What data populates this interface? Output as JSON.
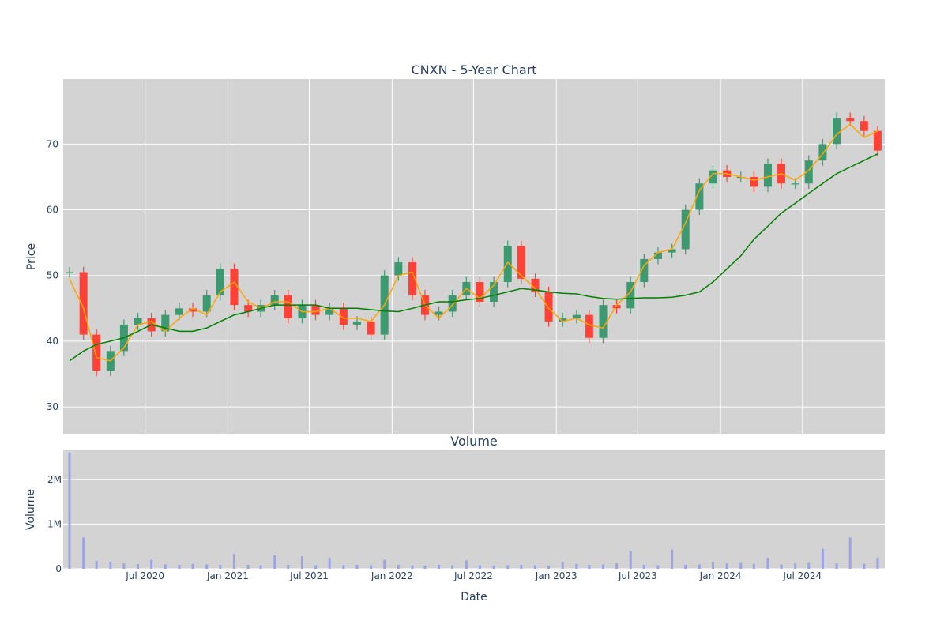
{
  "chart_data": [
    {
      "type": "candlestick",
      "title": "CNXN - 5-Year Chart",
      "ylabel": "Price",
      "ylim": [
        25.8,
        79.9
      ],
      "xlim": [
        "2020-01-01",
        "2024-12-31"
      ],
      "grid": true,
      "y_ticks": [
        30,
        40,
        50,
        60,
        70
      ],
      "colors": {
        "increasing": "#3d9970",
        "decreasing": "#ff4136",
        "ma_short": "#ffa500",
        "ma_long": "#008000",
        "plot_bg": "#d3d3d3",
        "grid": "#ffffff",
        "volume": "#9da3e6"
      },
      "series": [
        {
          "name": "",
          "style": "candlestick",
          "x": [
            "2020-01-01",
            "2020-02-01",
            "2020-03-01",
            "2020-04-01",
            "2020-05-01",
            "2020-06-01",
            "2020-07-01",
            "2020-08-01",
            "2020-09-01",
            "2020-10-01",
            "2020-11-01",
            "2020-12-01",
            "2021-01-01",
            "2021-02-01",
            "2021-03-01",
            "2021-04-01",
            "2021-05-01",
            "2021-06-01",
            "2021-07-01",
            "2021-08-01",
            "2021-09-01",
            "2021-10-01",
            "2021-11-01",
            "2021-12-01",
            "2022-01-01",
            "2022-02-01",
            "2022-03-01",
            "2022-04-01",
            "2022-05-01",
            "2022-06-01",
            "2022-07-01",
            "2022-08-01",
            "2022-09-01",
            "2022-10-01",
            "2022-11-01",
            "2022-12-01",
            "2023-01-01",
            "2023-02-01",
            "2023-03-01",
            "2023-04-01",
            "2023-05-01",
            "2023-06-01",
            "2023-07-01",
            "2023-08-01",
            "2023-09-01",
            "2023-10-01",
            "2023-11-01",
            "2023-12-01",
            "2024-01-01",
            "2024-02-01",
            "2024-03-01",
            "2024-04-01",
            "2024-05-01",
            "2024-06-01",
            "2024-07-01",
            "2024-08-01",
            "2024-09-01",
            "2024-10-01",
            "2024-11-01",
            "2024-12-01"
          ],
          "close": [
            50.5,
            41.0,
            35.5,
            38.5,
            42.5,
            43.5,
            41.5,
            44.0,
            45.0,
            44.5,
            47.0,
            51.0,
            45.5,
            44.5,
            45.5,
            47.0,
            43.5,
            45.5,
            44.0,
            45.0,
            42.5,
            43.0,
            41.0,
            50.0,
            52.0,
            47.0,
            44.0,
            44.5,
            47.0,
            49.0,
            46.0,
            49.0,
            54.5,
            49.5,
            47.5,
            43.0,
            43.5,
            44.0,
            40.5,
            45.5,
            45.0,
            49.0,
            52.5,
            53.5,
            54.0,
            60.0,
            64.0,
            66.0,
            65.0,
            65.0,
            63.5,
            67.0,
            64.0,
            64.0,
            67.5,
            70.0,
            74.0,
            73.5,
            72.0,
            69.0
          ]
        },
        {
          "name": "",
          "style": "line",
          "x": [
            "2020-01-01",
            "2020-02-01",
            "2020-03-01",
            "2020-04-01",
            "2020-05-01",
            "2020-06-01",
            "2020-07-01",
            "2020-08-01",
            "2020-09-01",
            "2020-10-01",
            "2020-11-01",
            "2020-12-01",
            "2021-01-01",
            "2021-02-01",
            "2021-03-01",
            "2021-04-01",
            "2021-05-01",
            "2021-06-01",
            "2021-07-01",
            "2021-08-01",
            "2021-09-01",
            "2021-10-01",
            "2021-11-01",
            "2021-12-01",
            "2022-01-01",
            "2022-02-01",
            "2022-03-01",
            "2022-04-01",
            "2022-05-01",
            "2022-06-01",
            "2022-07-01",
            "2022-08-01",
            "2022-09-01",
            "2022-10-01",
            "2022-11-01",
            "2022-12-01",
            "2023-01-01",
            "2023-02-01",
            "2023-03-01",
            "2023-04-01",
            "2023-05-01",
            "2023-06-01",
            "2023-07-01",
            "2023-08-01",
            "2023-09-01",
            "2023-10-01",
            "2023-11-01",
            "2023-12-01",
            "2024-01-01",
            "2024-02-01",
            "2024-03-01",
            "2024-04-01",
            "2024-05-01",
            "2024-06-01",
            "2024-07-01",
            "2024-08-01",
            "2024-09-01",
            "2024-10-01",
            "2024-11-01",
            "2024-12-01"
          ],
          "y": [
            49.5,
            45.0,
            37.5,
            37.0,
            39.0,
            42.5,
            43.0,
            41.5,
            43.5,
            45.0,
            44.0,
            47.5,
            49.0,
            46.0,
            45.0,
            46.0,
            46.0,
            44.5,
            44.5,
            45.0,
            43.5,
            43.5,
            43.0,
            45.5,
            50.0,
            50.5,
            45.5,
            43.5,
            45.5,
            48.0,
            46.5,
            48.5,
            52.0,
            50.0,
            48.0,
            45.0,
            43.0,
            43.5,
            42.5,
            42.0,
            45.5,
            47.5,
            51.5,
            53.5,
            54.0,
            58.0,
            63.0,
            65.5,
            65.5,
            65.0,
            64.5,
            65.0,
            65.5,
            64.5,
            66.0,
            68.5,
            71.5,
            73.0,
            71.0,
            72.0
          ]
        },
        {
          "name": "",
          "style": "line",
          "x": [
            "2020-01-01",
            "2020-02-01",
            "2020-03-01",
            "2020-04-01",
            "2020-05-01",
            "2020-06-01",
            "2020-07-01",
            "2020-08-01",
            "2020-09-01",
            "2020-10-01",
            "2020-11-01",
            "2020-12-01",
            "2021-01-01",
            "2021-02-01",
            "2021-03-01",
            "2021-04-01",
            "2021-05-01",
            "2021-06-01",
            "2021-07-01",
            "2021-08-01",
            "2021-09-01",
            "2021-10-01",
            "2021-11-01",
            "2021-12-01",
            "2022-01-01",
            "2022-02-01",
            "2022-03-01",
            "2022-04-01",
            "2022-05-01",
            "2022-06-01",
            "2022-07-01",
            "2022-08-01",
            "2022-09-01",
            "2022-10-01",
            "2022-11-01",
            "2022-12-01",
            "2023-01-01",
            "2023-02-01",
            "2023-03-01",
            "2023-04-01",
            "2023-05-01",
            "2023-06-01",
            "2023-07-01",
            "2023-08-01",
            "2023-09-01",
            "2023-10-01",
            "2023-11-01",
            "2023-12-01",
            "2024-01-01",
            "2024-02-01",
            "2024-03-01",
            "2024-04-01",
            "2024-05-01",
            "2024-06-01",
            "2024-07-01",
            "2024-08-01",
            "2024-09-01",
            "2024-10-01",
            "2024-11-01",
            "2024-12-01"
          ],
          "y": [
            37.0,
            38.5,
            39.5,
            40.0,
            40.5,
            41.5,
            42.5,
            42.0,
            41.5,
            41.5,
            42.0,
            43.0,
            44.0,
            44.5,
            45.0,
            45.5,
            45.5,
            45.5,
            45.5,
            45.0,
            45.0,
            45.0,
            44.8,
            44.6,
            44.5,
            45.0,
            45.5,
            46.0,
            46.0,
            46.3,
            46.5,
            47.0,
            47.5,
            48.0,
            47.8,
            47.5,
            47.3,
            47.2,
            46.8,
            46.5,
            46.4,
            46.5,
            46.6,
            46.6,
            46.7,
            47.0,
            47.5,
            49.0,
            51.0,
            53.0,
            55.5,
            57.5,
            59.5,
            61.0,
            62.5,
            64.0,
            65.5,
            66.5,
            67.5,
            68.5
          ]
        }
      ]
    },
    {
      "type": "bar",
      "title": "Volume",
      "xlabel": "Date",
      "ylabel": "Volume",
      "ylim": [
        0,
        2650000
      ],
      "y_ticks": [
        {
          "value": 0,
          "label": "0"
        },
        {
          "value": 1000000,
          "label": "1M"
        },
        {
          "value": 2000000,
          "label": "2M"
        }
      ],
      "x_ticks": [
        {
          "value": "2020-07-01",
          "label": "Jul 2020"
        },
        {
          "value": "2021-01-01",
          "label": "Jan 2021"
        },
        {
          "value": "2021-07-01",
          "label": "Jul 2021"
        },
        {
          "value": "2022-01-01",
          "label": "Jan 2022"
        },
        {
          "value": "2022-07-01",
          "label": "Jul 2022"
        },
        {
          "value": "2023-01-01",
          "label": "Jan 2023"
        },
        {
          "value": "2023-07-01",
          "label": "Jul 2023"
        },
        {
          "value": "2024-01-01",
          "label": "Jan 2024"
        },
        {
          "value": "2024-07-01",
          "label": "Jul 2024"
        }
      ],
      "series": [
        {
          "name": "",
          "x": [
            "2020-01-01",
            "2020-02-01",
            "2020-03-01",
            "2020-04-01",
            "2020-05-01",
            "2020-06-01",
            "2020-07-01",
            "2020-08-01",
            "2020-09-01",
            "2020-10-01",
            "2020-11-01",
            "2020-12-01",
            "2021-01-01",
            "2021-02-01",
            "2021-03-01",
            "2021-04-01",
            "2021-05-01",
            "2021-06-01",
            "2021-07-01",
            "2021-08-01",
            "2021-09-01",
            "2021-10-01",
            "2021-11-01",
            "2021-12-01",
            "2022-01-01",
            "2022-02-01",
            "2022-03-01",
            "2022-04-01",
            "2022-05-01",
            "2022-06-01",
            "2022-07-01",
            "2022-08-01",
            "2022-09-01",
            "2022-10-01",
            "2022-11-01",
            "2022-12-01",
            "2023-01-01",
            "2023-02-01",
            "2023-03-01",
            "2023-04-01",
            "2023-05-01",
            "2023-06-01",
            "2023-07-01",
            "2023-08-01",
            "2023-09-01",
            "2023-10-01",
            "2023-11-01",
            "2023-12-01",
            "2024-01-01",
            "2024-02-01",
            "2024-03-01",
            "2024-04-01",
            "2024-05-01",
            "2024-06-01",
            "2024-07-01",
            "2024-08-01",
            "2024-09-01",
            "2024-10-01",
            "2024-11-01",
            "2024-12-01"
          ],
          "values": [
            2600000,
            700000,
            180000,
            150000,
            120000,
            110000,
            200000,
            100000,
            90000,
            110000,
            100000,
            90000,
            330000,
            90000,
            80000,
            300000,
            90000,
            280000,
            80000,
            250000,
            80000,
            90000,
            80000,
            200000,
            90000,
            80000,
            70000,
            90000,
            80000,
            190000,
            80000,
            70000,
            80000,
            90000,
            80000,
            70000,
            150000,
            110000,
            90000,
            100000,
            120000,
            400000,
            90000,
            80000,
            430000,
            90000,
            100000,
            150000,
            120000,
            130000,
            110000,
            250000,
            100000,
            120000,
            130000,
            450000,
            120000,
            700000,
            110000,
            250000
          ]
        }
      ]
    }
  ]
}
